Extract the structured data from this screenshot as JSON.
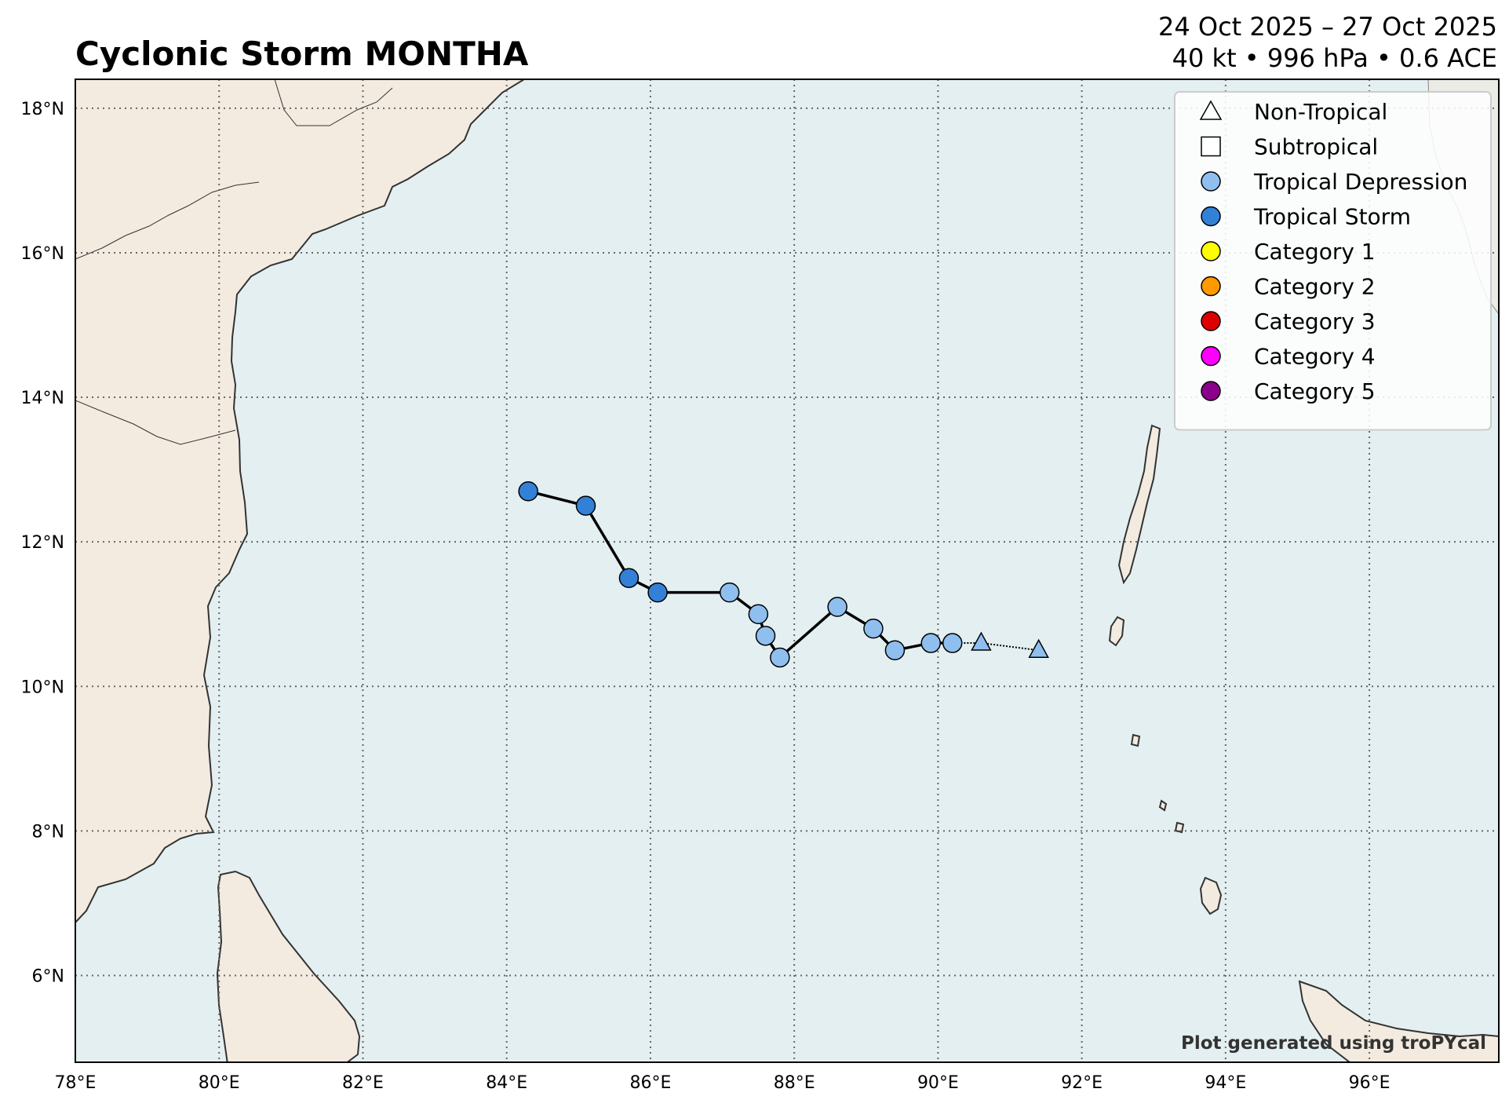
{
  "title": "Cyclonic Storm MONTHA",
  "date_range": "24 Oct 2025 – 27 Oct 2025",
  "summary": "40 kt • 996 hPa • 0.6 ACE",
  "credit": "Plot generated using troPYcal",
  "colors": {
    "ocean": "#e4eff1",
    "land": "#f3ebe0",
    "coast": "#333333",
    "track": "#000000",
    "grid": "#666666"
  },
  "legend": [
    {
      "label": "Non-Tropical",
      "marker": "triangle",
      "color": "#ffffff"
    },
    {
      "label": "Subtropical",
      "marker": "square",
      "color": "#ffffff"
    },
    {
      "label": "Tropical Depression",
      "marker": "circle",
      "color": "#8fbfef"
    },
    {
      "label": "Tropical Storm",
      "marker": "circle",
      "color": "#3381d6"
    },
    {
      "label": "Category 1",
      "marker": "circle",
      "color": "#ffff00"
    },
    {
      "label": "Category 2",
      "marker": "circle",
      "color": "#ff9900"
    },
    {
      "label": "Category 3",
      "marker": "circle",
      "color": "#dd0000"
    },
    {
      "label": "Category 4",
      "marker": "circle",
      "color": "#ff00ff"
    },
    {
      "label": "Category 5",
      "marker": "circle",
      "color": "#8b008b"
    }
  ],
  "map": {
    "lon_range": [
      78,
      97.8
    ],
    "lat_range": [
      4.8,
      18.4
    ],
    "lon_ticks": [
      78,
      80,
      82,
      84,
      86,
      88,
      90,
      92,
      94,
      96
    ],
    "lat_ticks": [
      6,
      8,
      10,
      12,
      14,
      16,
      18
    ],
    "lon_tick_labels": [
      "78°E",
      "80°E",
      "82°E",
      "84°E",
      "86°E",
      "88°E",
      "90°E",
      "92°E",
      "94°E",
      "96°E"
    ],
    "lat_tick_labels": [
      "6°N",
      "8°N",
      "10°N",
      "12°N",
      "14°N",
      "16°N",
      "18°N"
    ],
    "grid": true,
    "legend_position": "top-right"
  },
  "track": [
    {
      "lon": 91.4,
      "lat": 10.5,
      "type": "Non-Tropical"
    },
    {
      "lon": 90.6,
      "lat": 10.6,
      "type": "Non-Tropical"
    },
    {
      "lon": 90.2,
      "lat": 10.6,
      "type": "Tropical Depression"
    },
    {
      "lon": 89.9,
      "lat": 10.6,
      "type": "Tropical Depression"
    },
    {
      "lon": 89.4,
      "lat": 10.5,
      "type": "Tropical Depression"
    },
    {
      "lon": 89.1,
      "lat": 10.8,
      "type": "Tropical Depression"
    },
    {
      "lon": 88.6,
      "lat": 11.1,
      "type": "Tropical Depression"
    },
    {
      "lon": 87.8,
      "lat": 10.4,
      "type": "Tropical Depression"
    },
    {
      "lon": 87.6,
      "lat": 10.7,
      "type": "Tropical Depression"
    },
    {
      "lon": 87.5,
      "lat": 11.0,
      "type": "Tropical Depression"
    },
    {
      "lon": 87.1,
      "lat": 11.3,
      "type": "Tropical Depression"
    },
    {
      "lon": 86.1,
      "lat": 11.3,
      "type": "Tropical Storm"
    },
    {
      "lon": 85.7,
      "lat": 11.5,
      "type": "Tropical Storm"
    },
    {
      "lon": 85.1,
      "lat": 12.5,
      "type": "Tropical Storm"
    },
    {
      "lon": 84.3,
      "lat": 12.7,
      "type": "Tropical Storm"
    }
  ]
}
